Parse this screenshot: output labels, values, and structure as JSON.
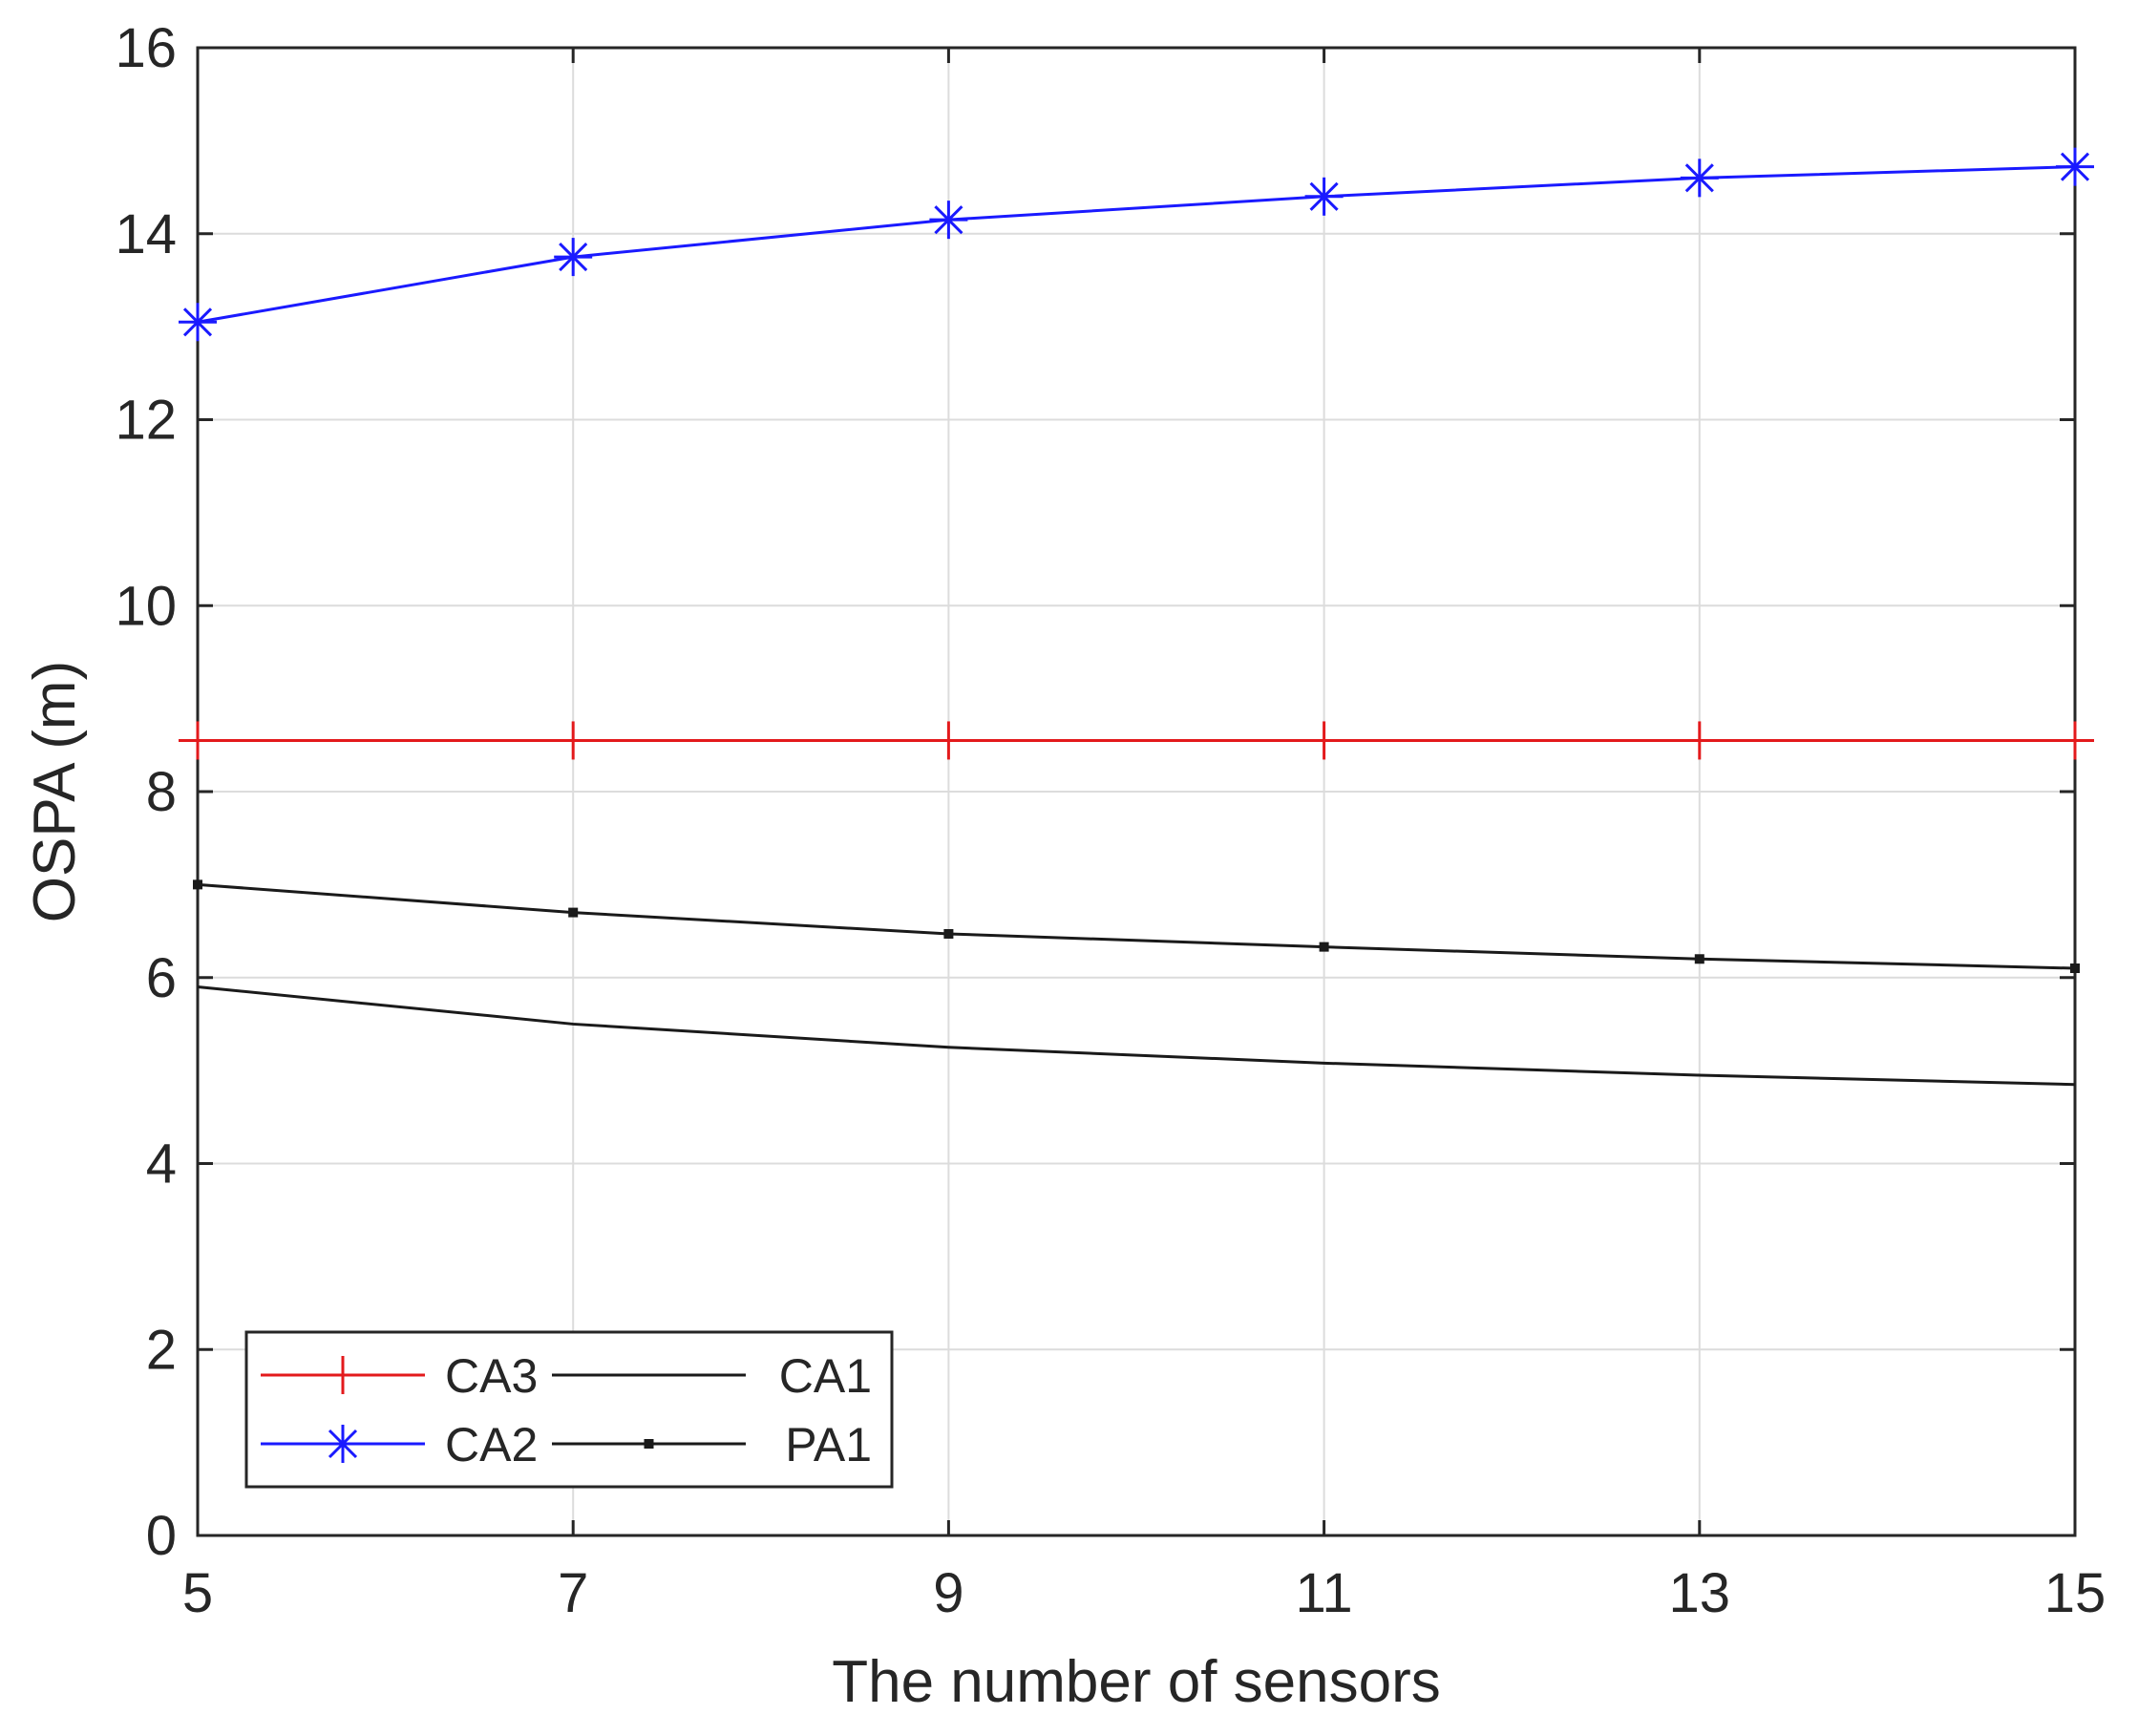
{
  "chart_data": {
    "type": "line",
    "title": "",
    "xlabel": "The number of sensors",
    "ylabel": "OSPA (m)",
    "xlim": [
      5,
      15
    ],
    "ylim": [
      0,
      16
    ],
    "xticks": [
      5,
      7,
      9,
      11,
      13,
      15
    ],
    "yticks": [
      0,
      2,
      4,
      6,
      8,
      10,
      12,
      14,
      16
    ],
    "xtick_labels": [
      "5",
      "7",
      "9",
      "11",
      "13",
      "15"
    ],
    "ytick_labels": [
      "0",
      "2",
      "4",
      "6",
      "8",
      "10",
      "12",
      "14",
      "16"
    ],
    "grid": true,
    "legend_position": "bottom-left",
    "x": [
      5,
      7,
      9,
      11,
      13,
      15
    ],
    "series": [
      {
        "name": "CA3",
        "color": "#e31a1c",
        "marker": "plus",
        "values": [
          8.55,
          8.55,
          8.55,
          8.55,
          8.55,
          8.55
        ]
      },
      {
        "name": "CA2",
        "color": "#1a1aff",
        "marker": "asterisk",
        "values": [
          13.05,
          13.75,
          14.15,
          14.4,
          14.6,
          14.72
        ]
      },
      {
        "name": "CA1",
        "color": "#1a1a1a",
        "marker": "none",
        "values": [
          5.9,
          5.5,
          5.25,
          5.08,
          4.95,
          4.85
        ]
      },
      {
        "name": "PA1",
        "color": "#1a1a1a",
        "marker": "point",
        "values": [
          7.0,
          6.7,
          6.47,
          6.33,
          6.2,
          6.1
        ]
      }
    ]
  }
}
